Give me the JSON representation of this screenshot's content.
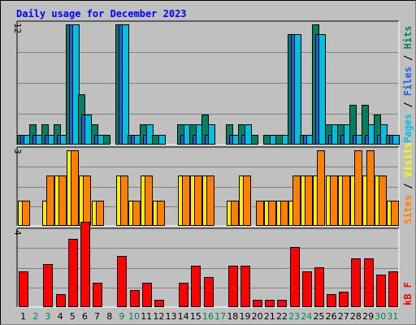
{
  "chart_data": {
    "type": "bar",
    "title": "Daily usage for December 2023",
    "categories": [
      "1",
      "2",
      "3",
      "4",
      "5",
      "6",
      "7",
      "8",
      "9",
      "10",
      "11",
      "12",
      "13",
      "14",
      "15",
      "16",
      "17",
      "18",
      "19",
      "20",
      "21",
      "22",
      "23",
      "24",
      "25",
      "26",
      "27",
      "28",
      "29",
      "30",
      "31"
    ],
    "weekend_days": [
      "2",
      "3",
      "9",
      "10",
      "16",
      "17",
      "23",
      "24",
      "30",
      "31"
    ],
    "panels": [
      {
        "id": "top",
        "ymax_label": "12",
        "ymax": 12,
        "right_label": [
          "Pages",
          " / ",
          "Files",
          " / ",
          "Hits"
        ],
        "right_label_colors": [
          "#00c0e0",
          "#000000",
          "#2060e0",
          "#000000",
          "#008060"
        ],
        "series": [
          {
            "name": "Hits",
            "color": "#008060",
            "values": [
              1,
              2,
              2,
              2,
              12,
              5,
              2,
              1,
              12,
              1,
              2,
              1,
              0,
              2,
              2,
              3,
              0,
              2,
              2,
              1,
              1,
              1,
              11,
              1,
              12,
              2,
              2,
              4,
              4,
              3,
              1
            ]
          },
          {
            "name": "Files",
            "color": "#2060e0",
            "values": [
              1,
              1,
              1,
              1,
              12,
              3,
              1,
              0,
              12,
              1,
              1,
              0,
              0,
              1,
              1,
              1,
              0,
              1,
              1,
              0,
              0,
              0,
              11,
              1,
              11,
              1,
              1,
              1,
              1,
              1,
              1
            ]
          },
          {
            "name": "Pages",
            "color": "#00c0e0",
            "values": [
              1,
              1,
              1,
              1,
              12,
              3,
              1,
              0,
              12,
              1,
              2,
              1,
              0,
              2,
              2,
              2,
              0,
              1,
              2,
              0,
              1,
              1,
              11,
              1,
              11,
              2,
              2,
              1,
              2,
              2,
              1
            ]
          }
        ]
      },
      {
        "id": "middle",
        "ymax_label": "3",
        "ymax": 3,
        "right_label": [
          "Sites",
          " / ",
          "Visits"
        ],
        "right_label_colors": [
          "#ff8000",
          "#000000",
          "#ffff00"
        ],
        "series": [
          {
            "name": "Visits",
            "color": "#ffee00",
            "values": [
              1,
              0,
              1,
              2,
              3,
              2,
              1,
              0,
              2,
              1,
              2,
              1,
              0,
              2,
              2,
              2,
              0,
              1,
              2,
              0,
              1,
              1,
              1,
              2,
              2,
              2,
              2,
              2,
              2,
              2,
              1
            ]
          },
          {
            "name": "Sites",
            "color": "#ff8000",
            "values": [
              1,
              0,
              2,
              2,
              3,
              2,
              1,
              0,
              2,
              1,
              2,
              1,
              0,
              2,
              2,
              2,
              0,
              1,
              2,
              1,
              1,
              1,
              2,
              2,
              3,
              2,
              2,
              3,
              3,
              2,
              1
            ]
          }
        ]
      },
      {
        "id": "bottom",
        "ymax_label": "4",
        "ymax": 4,
        "right_label": [
          "kB F"
        ],
        "right_label_colors": [
          "#ff0000"
        ],
        "series": [
          {
            "name": "kB F",
            "color": "#ff0000",
            "values": [
              1.9,
              0,
              2.3,
              0.7,
              3.6,
              4.5,
              1.3,
              0,
              2.7,
              0.9,
              1.3,
              0.4,
              0,
              1.3,
              2.2,
              1.6,
              0,
              2.2,
              2.2,
              0.4,
              0.4,
              0.4,
              3.2,
              1.9,
              2.1,
              0.7,
              0.8,
              2.6,
              2.6,
              1.7,
              1.9
            ]
          }
        ]
      }
    ],
    "colors": {
      "background": "#c0c0c0",
      "title": "#0000ff",
      "gridline": "#808080",
      "weekday_label": "#000000",
      "weekend_label": "#00805a"
    }
  }
}
